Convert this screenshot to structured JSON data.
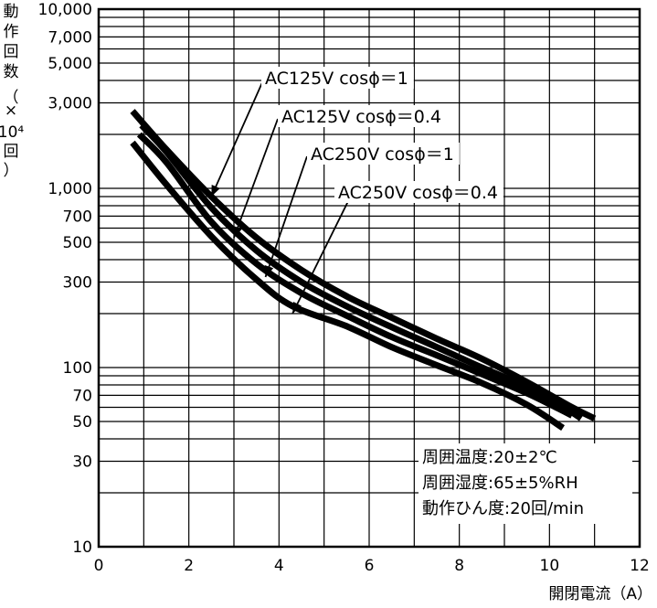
{
  "chart_data": {
    "type": "line",
    "title": "",
    "xlabel": "開閉電流（A）",
    "ylabel_chars": [
      "動",
      "作",
      "回",
      "数",
      "（",
      "×",
      "10⁴",
      "回",
      "）"
    ],
    "xlim": [
      0,
      12
    ],
    "ylim": [
      10,
      10000
    ],
    "yscale": "log",
    "grid": true,
    "x_ticks": [
      0,
      2,
      4,
      6,
      8,
      10,
      12
    ],
    "x_tick_labels": [
      "0",
      "2",
      "4",
      "6",
      "8",
      "10",
      "12"
    ],
    "y_ticks": [
      10,
      30,
      50,
      70,
      100,
      300,
      500,
      700,
      1000,
      3000,
      5000,
      7000,
      10000
    ],
    "y_tick_labels": [
      "10",
      "30",
      "50",
      "70",
      "100",
      "300",
      "500",
      "700",
      "1,000",
      "3,000",
      "5,000",
      "7,000",
      "10,000"
    ],
    "series": [
      {
        "name": "AC125V cosϕ=1",
        "x": [
          0.75,
          1.5,
          2.5,
          3.5,
          4.5,
          5.5,
          6.5,
          7.5,
          8.5,
          9.5,
          10.5,
          11.0
        ],
        "y": [
          2700,
          1650,
          900,
          530,
          350,
          250,
          190,
          145,
          112,
          83,
          60,
          52
        ]
      },
      {
        "name": "AC125V cosϕ=0.4",
        "x": [
          0.95,
          1.5,
          2.5,
          3.5,
          4.5,
          5.5,
          6.5,
          7.5,
          8.5,
          9.5,
          10.2,
          10.7
        ],
        "y": [
          2250,
          1600,
          780,
          450,
          300,
          220,
          168,
          130,
          100,
          78,
          63,
          52
        ]
      },
      {
        "name": "AC250V cosϕ=1",
        "x": [
          0.9,
          1.5,
          2.5,
          3.5,
          4.5,
          5.5,
          6.5,
          7.5,
          8.5,
          9.5,
          10.2,
          10.5
        ],
        "y": [
          2000,
          1400,
          650,
          380,
          260,
          195,
          148,
          117,
          92,
          72,
          59,
          54
        ]
      },
      {
        "name": "AC250V cosϕ=0.4",
        "x": [
          0.75,
          1.5,
          2.5,
          3.5,
          4.3,
          5.5,
          6.5,
          7.5,
          8.5,
          9.5,
          10.3
        ],
        "y": [
          1800,
          1050,
          540,
          310,
          220,
          170,
          130,
          103,
          82,
          62,
          46
        ]
      }
    ],
    "annotations": [
      {
        "text": "AC125V  cosϕ＝1",
        "points_to": [
          2.5,
          900
        ]
      },
      {
        "text": "AC125V  cosϕ＝0.4",
        "points_to": [
          3.0,
          530
        ]
      },
      {
        "text": "AC250V  cosϕ＝1",
        "points_to": [
          3.7,
          320
        ]
      },
      {
        "text": "AC250V  cosϕ＝0.4",
        "points_to": [
          4.3,
          200
        ]
      }
    ],
    "conditions": [
      "周囲温度:20±2℃",
      "周囲湿度:65±5%RH",
      "動作ひん度:20回/min"
    ]
  }
}
